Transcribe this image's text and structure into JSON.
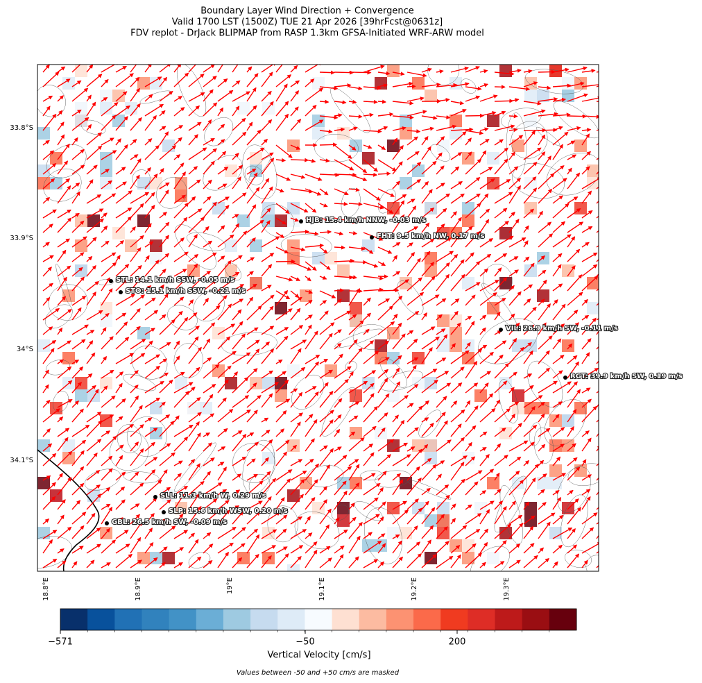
{
  "title": [
    "Boundary Layer Wind Direction + Convergence",
    "Valid 1700 LST (1500Z) TUE 21 Apr 2026 [39hrFcst@0631z]",
    "FDV replot - DrJack BLIPMAP from RASP 1.3km GFSA-Initiated WRF-ARW model"
  ],
  "lat_labels": [
    "33.8°S",
    "33.9°S",
    "34°S",
    "34.1°S"
  ],
  "lon_labels": [
    "18.8°E",
    "18.9°E",
    "19°E",
    "19.1°E",
    "19.2°E",
    "19.3°E"
  ],
  "stations": [
    {
      "label": "HJB: 15.4 km/h NNW, -0.03 m/s"
    },
    {
      "label": "FHT: 9.5 km/h NW, 0.17 m/s"
    },
    {
      "label": "STL: 14.1 km/h SSW, -0.05 m/s"
    },
    {
      "label": "STO: 15.1 km/h SSW, -0.21 m/s"
    },
    {
      "label": "VIL: 26.9 km/h SW, -0.11 m/s"
    },
    {
      "label": "RGT: 39.9 km/h SW, 0.19 m/s"
    },
    {
      "label": "SLL: 11.3 km/h W, 0.29 m/s"
    },
    {
      "label": "SLP: 15.6 km/h WSW, 0.20 m/s"
    },
    {
      "label": "GBL: 26.5 km/h SW, -0.09 m/s"
    }
  ],
  "colorbar": {
    "ticks": [
      "−571",
      "−50",
      "200"
    ],
    "label": "Vertical Velocity [cm/s]"
  },
  "note": "Values between -50 and +50 cm/s are masked"
}
